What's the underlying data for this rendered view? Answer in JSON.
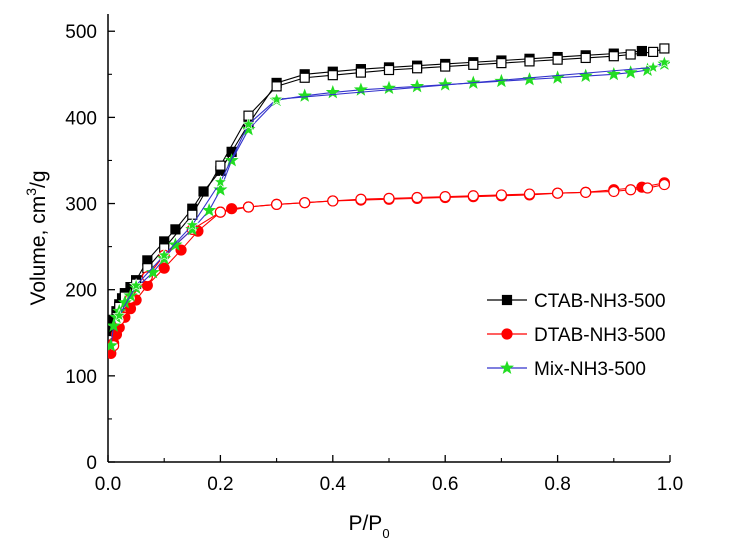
{
  "chart_data": {
    "type": "line",
    "title": "",
    "xlabel": "P/P0",
    "xlabel_main": "P/P",
    "xlabel_sub": "0",
    "ylabel": "Volume, cm3/g",
    "ylabel_main": "Volume, cm",
    "ylabel_sup": "3",
    "ylabel_tail": "/g",
    "xlim": [
      0.0,
      1.0
    ],
    "ylim": [
      0,
      520
    ],
    "xticks": [
      "0.0",
      "0.2",
      "0.4",
      "0.6",
      "0.8",
      "1.0"
    ],
    "yticks": [
      "0",
      "100",
      "200",
      "300",
      "400",
      "500"
    ],
    "legend_position": "center-right",
    "series": [
      {
        "name": "CTAB-NH3-500",
        "color": "#000000",
        "marker": "square",
        "adsorption": {
          "x": [
            0.005,
            0.01,
            0.015,
            0.02,
            0.025,
            0.03,
            0.04,
            0.05,
            0.07,
            0.1,
            0.12,
            0.15,
            0.17,
            0.2,
            0.22,
            0.25,
            0.3,
            0.35,
            0.4,
            0.45,
            0.5,
            0.55,
            0.6,
            0.65,
            0.7,
            0.75,
            0.8,
            0.85,
            0.9,
            0.95
          ],
          "y": [
            152,
            165,
            175,
            183,
            190,
            196,
            203,
            211,
            234,
            256,
            270,
            294,
            314,
            338,
            360,
            392,
            440,
            450,
            453,
            456,
            458,
            460,
            462,
            464,
            466,
            468,
            470,
            472,
            474,
            477
          ]
        },
        "desorption": {
          "x": [
            0.99,
            0.97,
            0.93,
            0.9,
            0.85,
            0.8,
            0.75,
            0.7,
            0.65,
            0.6,
            0.55,
            0.5,
            0.45,
            0.4,
            0.35,
            0.3,
            0.25,
            0.2,
            0.15,
            0.1,
            0.07,
            0.05,
            0.03,
            0.02
          ],
          "y": [
            480,
            476,
            473,
            471,
            469,
            467,
            465,
            463,
            461,
            459,
            457,
            455,
            452,
            449,
            446,
            436,
            402,
            344,
            287,
            248,
            225,
            207,
            192,
            180
          ]
        }
      },
      {
        "name": "DTAB-NH3-500",
        "color": "#ff0000",
        "marker": "circle",
        "adsorption": {
          "x": [
            0.005,
            0.01,
            0.015,
            0.02,
            0.03,
            0.04,
            0.05,
            0.07,
            0.1,
            0.13,
            0.16,
            0.2,
            0.22,
            0.25,
            0.3,
            0.35,
            0.4,
            0.45,
            0.5,
            0.55,
            0.6,
            0.65,
            0.7,
            0.75,
            0.8,
            0.85,
            0.9,
            0.95,
            0.99
          ],
          "y": [
            126,
            138,
            148,
            156,
            168,
            178,
            188,
            205,
            225,
            246,
            268,
            290,
            294,
            296,
            299,
            301,
            303,
            304,
            305,
            306,
            307,
            308,
            309,
            310,
            312,
            313,
            316,
            319,
            324
          ]
        },
        "desorption": {
          "x": [
            0.99,
            0.96,
            0.93,
            0.9,
            0.85,
            0.8,
            0.75,
            0.7,
            0.65,
            0.6,
            0.55,
            0.5,
            0.45,
            0.4,
            0.35,
            0.3,
            0.25,
            0.2,
            0.15,
            0.1,
            0.07,
            0.04,
            0.02,
            0.01
          ],
          "y": [
            322,
            318,
            316,
            314,
            313,
            312,
            311,
            310,
            309,
            308,
            307,
            306,
            305,
            303,
            301,
            299,
            296,
            290,
            270,
            240,
            215,
            190,
            165,
            135
          ]
        }
      },
      {
        "name": "Mix-NH3-500",
        "color": "#22dd22",
        "line_color": "#3333cc",
        "marker": "star",
        "adsorption": {
          "x": [
            0.005,
            0.01,
            0.015,
            0.02,
            0.03,
            0.04,
            0.05,
            0.08,
            0.1,
            0.12,
            0.15,
            0.18,
            0.2,
            0.22,
            0.25,
            0.3,
            0.35,
            0.4,
            0.45,
            0.5,
            0.55,
            0.6,
            0.65,
            0.7,
            0.75,
            0.8,
            0.85,
            0.9,
            0.93,
            0.96,
            0.99
          ],
          "y": [
            135,
            158,
            168,
            175,
            185,
            193,
            202,
            220,
            236,
            252,
            270,
            292,
            316,
            350,
            386,
            420,
            425,
            429,
            432,
            434,
            436,
            438,
            440,
            442,
            444,
            446,
            448,
            450,
            452,
            455,
            462
          ]
        },
        "desorption": {
          "x": [
            0.99,
            0.97,
            0.3,
            0.25,
            0.2,
            0.15,
            0.1,
            0.05,
            0.02
          ],
          "y": [
            464,
            458,
            421,
            392,
            325,
            275,
            240,
            205,
            170
          ]
        }
      }
    ]
  }
}
